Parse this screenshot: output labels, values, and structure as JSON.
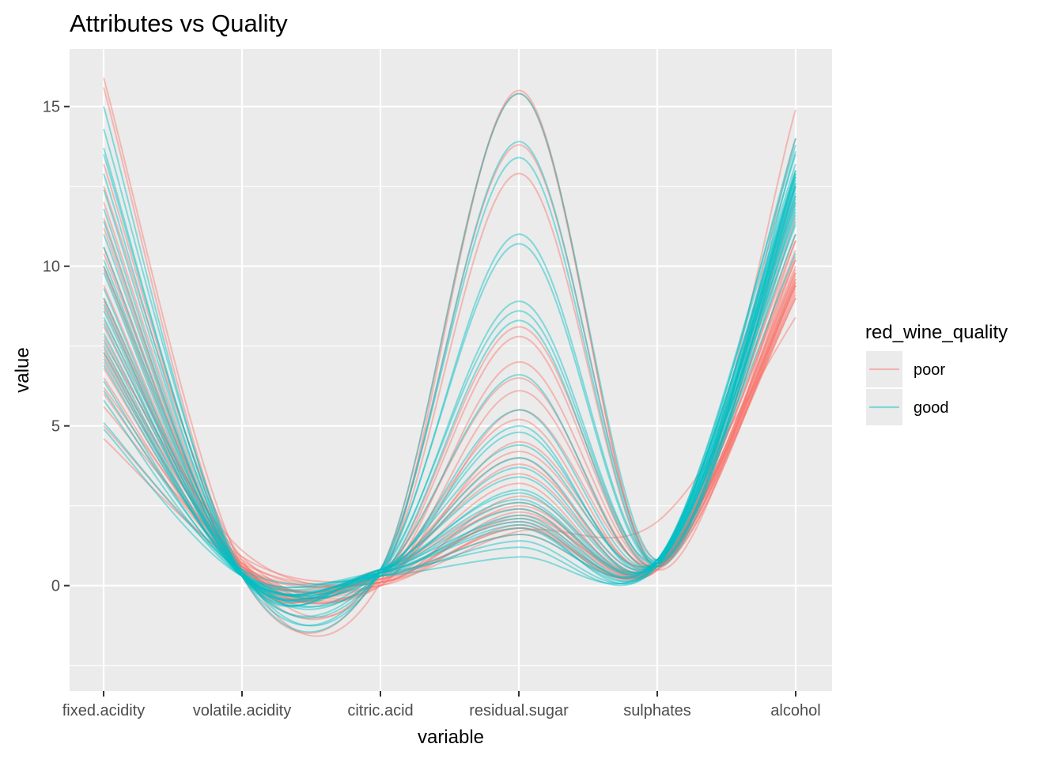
{
  "chart_data": {
    "type": "line",
    "title": "Attributes vs Quality",
    "xlabel": "variable",
    "ylabel": "value",
    "categories": [
      "fixed.acidity",
      "volatile.acidity",
      "citric.acid",
      "residual.sugar",
      "sulphates",
      "alcohol"
    ],
    "y_ticks": [
      0,
      5,
      10,
      15
    ],
    "ylim": [
      -3.3,
      16.8
    ],
    "grid": true,
    "legend": {
      "title": "red_wine_quality",
      "position": "right",
      "entries": [
        {
          "label": "poor",
          "color": "#F8766D"
        },
        {
          "label": "good",
          "color": "#00BFC4"
        }
      ]
    },
    "series": [
      {
        "group": "poor",
        "values": [
          15.9,
          0.6,
          0.1,
          15.5,
          0.6,
          14.9
        ]
      },
      {
        "group": "poor",
        "values": [
          15.6,
          0.3,
          0.5,
          15.4,
          0.6,
          14.0
        ]
      },
      {
        "group": "poor",
        "values": [
          12.5,
          0.8,
          0.3,
          12.9,
          0.5,
          10.8
        ]
      },
      {
        "group": "poor",
        "values": [
          11.2,
          0.4,
          0.5,
          13.8,
          0.8,
          12.5
        ]
      },
      {
        "group": "poor",
        "values": [
          9.0,
          0.6,
          0.3,
          8.1,
          0.6,
          9.5
        ]
      },
      {
        "group": "poor",
        "values": [
          7.2,
          0.5,
          0.2,
          7.8,
          0.6,
          10.2
        ]
      },
      {
        "group": "poor",
        "values": [
          10.0,
          0.7,
          0.4,
          6.5,
          0.5,
          9.4
        ]
      },
      {
        "group": "poor",
        "values": [
          8.3,
          0.9,
          0.0,
          5.5,
          0.7,
          9.8
        ]
      },
      {
        "group": "poor",
        "values": [
          7.8,
          0.6,
          0.1,
          4.5,
          0.6,
          9.2
        ]
      },
      {
        "group": "poor",
        "values": [
          6.8,
          0.5,
          0.3,
          3.8,
          0.6,
          10.0
        ]
      },
      {
        "group": "poor",
        "values": [
          9.4,
          0.4,
          0.3,
          3.2,
          0.5,
          11.0
        ]
      },
      {
        "group": "poor",
        "values": [
          7.4,
          0.7,
          0.0,
          2.8,
          0.6,
          9.4
        ]
      },
      {
        "group": "poor",
        "values": [
          8.1,
          0.6,
          0.2,
          2.5,
          0.6,
          9.6
        ]
      },
      {
        "group": "poor",
        "values": [
          6.2,
          0.8,
          0.1,
          2.2,
          0.7,
          9.1
        ]
      },
      {
        "group": "poor",
        "values": [
          10.6,
          0.5,
          0.4,
          2.0,
          0.6,
          10.3
        ]
      },
      {
        "group": "poor",
        "values": [
          7.0,
          0.6,
          0.0,
          1.9,
          0.5,
          9.5
        ]
      },
      {
        "group": "poor",
        "values": [
          5.6,
          0.9,
          0.2,
          1.8,
          0.6,
          9.0
        ]
      },
      {
        "group": "poor",
        "values": [
          4.6,
          0.7,
          0.1,
          1.7,
          2.0,
          8.4
        ]
      },
      {
        "group": "poor",
        "values": [
          11.5,
          0.3,
          0.5,
          2.6,
          0.7,
          10.8
        ]
      },
      {
        "group": "poor",
        "values": [
          8.7,
          0.6,
          0.3,
          1.6,
          0.6,
          9.3
        ]
      },
      {
        "group": "poor",
        "values": [
          6.5,
          0.5,
          0.0,
          6.1,
          0.6,
          9.7
        ]
      },
      {
        "group": "poor",
        "values": [
          9.9,
          0.4,
          0.4,
          4.0,
          0.5,
          12.0
        ]
      },
      {
        "group": "poor",
        "values": [
          7.6,
          1.1,
          0.1,
          2.3,
          0.5,
          9.0
        ]
      },
      {
        "group": "poor",
        "values": [
          12.0,
          0.4,
          0.5,
          3.5,
          0.6,
          10.5
        ]
      },
      {
        "group": "poor",
        "values": [
          8.9,
          0.3,
          0.4,
          5.2,
          0.6,
          11.5
        ]
      },
      {
        "group": "poor",
        "values": [
          6.0,
          0.6,
          0.2,
          2.1,
          0.6,
          9.4
        ]
      },
      {
        "group": "poor",
        "values": [
          13.2,
          0.5,
          0.5,
          2.4,
          0.6,
          9.8
        ]
      },
      {
        "group": "poor",
        "values": [
          7.3,
          0.7,
          0.1,
          7.0,
          0.6,
          9.6
        ]
      },
      {
        "group": "poor",
        "values": [
          5.0,
          0.6,
          0.1,
          1.8,
          0.6,
          10.2
        ]
      },
      {
        "group": "poor",
        "values": [
          10.4,
          0.5,
          0.4,
          4.2,
          0.7,
          9.9
        ]
      },
      {
        "group": "good",
        "values": [
          15.0,
          0.3,
          0.5,
          15.4,
          0.8,
          13.6
        ]
      },
      {
        "group": "good",
        "values": [
          14.3,
          0.5,
          0.4,
          13.9,
          0.7,
          12.9
        ]
      },
      {
        "group": "good",
        "values": [
          13.7,
          0.3,
          0.5,
          13.4,
          0.6,
          12.5
        ]
      },
      {
        "group": "good",
        "values": [
          12.4,
          0.4,
          0.4,
          11.0,
          0.8,
          13.0
        ]
      },
      {
        "group": "good",
        "values": [
          11.8,
          0.3,
          0.5,
          10.7,
          0.7,
          12.2
        ]
      },
      {
        "group": "good",
        "values": [
          10.2,
          0.4,
          0.4,
          8.9,
          0.7,
          11.8
        ]
      },
      {
        "group": "good",
        "values": [
          9.3,
          0.3,
          0.5,
          8.6,
          0.8,
          12.6
        ]
      },
      {
        "group": "good",
        "values": [
          8.6,
          0.4,
          0.3,
          8.3,
          0.6,
          11.4
        ]
      },
      {
        "group": "good",
        "values": [
          7.9,
          0.5,
          0.4,
          6.6,
          0.7,
          12.8
        ]
      },
      {
        "group": "good",
        "values": [
          7.1,
          0.4,
          0.3,
          5.5,
          0.7,
          11.9
        ]
      },
      {
        "group": "good",
        "values": [
          6.4,
          0.3,
          0.4,
          4.8,
          0.7,
          12.4
        ]
      },
      {
        "group": "good",
        "values": [
          8.2,
          0.4,
          0.4,
          4.0,
          0.8,
          13.2
        ]
      },
      {
        "group": "good",
        "values": [
          9.8,
          0.3,
          0.5,
          3.4,
          0.7,
          12.0
        ]
      },
      {
        "group": "good",
        "values": [
          11.0,
          0.4,
          0.4,
          3.0,
          0.8,
          12.7
        ]
      },
      {
        "group": "good",
        "values": [
          12.9,
          0.3,
          0.5,
          2.7,
          0.7,
          11.6
        ]
      },
      {
        "group": "good",
        "values": [
          7.5,
          0.3,
          0.4,
          2.4,
          0.8,
          13.5
        ]
      },
      {
        "group": "good",
        "values": [
          6.9,
          0.4,
          0.3,
          2.2,
          0.7,
          12.3
        ]
      },
      {
        "group": "good",
        "values": [
          5.8,
          0.3,
          0.4,
          2.0,
          0.6,
          11.7
        ]
      },
      {
        "group": "good",
        "values": [
          10.6,
          0.3,
          0.5,
          2.1,
          0.8,
          12.9
        ]
      },
      {
        "group": "good",
        "values": [
          9.0,
          0.4,
          0.4,
          1.9,
          0.7,
          13.8
        ]
      },
      {
        "group": "good",
        "values": [
          8.4,
          0.3,
          0.4,
          1.8,
          0.7,
          12.5
        ]
      },
      {
        "group": "good",
        "values": [
          7.7,
          0.3,
          0.3,
          1.6,
          0.8,
          11.3
        ]
      },
      {
        "group": "good",
        "values": [
          5.1,
          0.5,
          0.3,
          1.4,
          0.7,
          12.1
        ]
      },
      {
        "group": "good",
        "values": [
          6.1,
          0.4,
          0.4,
          1.2,
          0.6,
          11.0
        ]
      },
      {
        "group": "good",
        "values": [
          4.9,
          0.3,
          0.3,
          0.9,
          0.7,
          10.4
        ]
      },
      {
        "group": "good",
        "values": [
          13.5,
          0.4,
          0.5,
          2.9,
          0.8,
          13.0
        ]
      },
      {
        "group": "good",
        "values": [
          11.4,
          0.3,
          0.4,
          3.7,
          0.7,
          12.6
        ]
      },
      {
        "group": "good",
        "values": [
          10.0,
          0.4,
          0.5,
          4.4,
          0.8,
          12.2
        ]
      },
      {
        "group": "good",
        "values": [
          8.8,
          0.3,
          0.4,
          5.0,
          0.7,
          14.0
        ]
      },
      {
        "group": "good",
        "values": [
          7.3,
          0.3,
          0.4,
          2.6,
          0.8,
          12.8
        ]
      }
    ]
  }
}
